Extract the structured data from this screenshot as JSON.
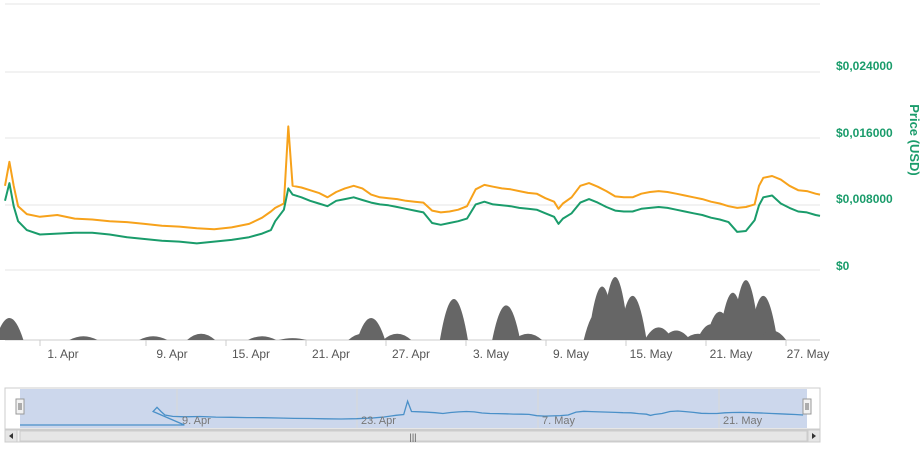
{
  "chart_data": {
    "type": "line",
    "ylabel": "Price (USD)",
    "ylim": [
      0,
      0.03
    ],
    "y_tick_labels": [
      "$0",
      "$0,008000",
      "$0,016000",
      "$0,024000"
    ],
    "y_tick_values": [
      0,
      0.008,
      0.016,
      0.024
    ],
    "x_tick_labels": [
      "1. Apr",
      "9. Apr",
      "15. Apr",
      "21. Apr",
      "27. Apr",
      "3. May",
      "9. May",
      "15. May",
      "21. May",
      "27. May"
    ],
    "x_range_days": [
      0,
      93.5
    ],
    "x_tick_days": [
      6,
      14,
      20,
      26,
      32,
      38,
      44,
      50,
      56,
      62
    ],
    "grid": true,
    "colors": {
      "series_orange": "#f7a21b",
      "series_green": "#1a9c6b",
      "axis_text": "#1a9c6b",
      "volume": "#666666",
      "navigator_line": "#4a90c8",
      "navigator_fill": "#c6d3ea"
    },
    "series": [
      {
        "color": "#f7a21b",
        "points": [
          [
            0,
            0.0095
          ],
          [
            0.5,
            0.0122
          ],
          [
            1,
            0.0095
          ],
          [
            1.5,
            0.0072
          ],
          [
            2.5,
            0.0063
          ],
          [
            4,
            0.006
          ],
          [
            6,
            0.0062
          ],
          [
            8,
            0.0058
          ],
          [
            10,
            0.0057
          ],
          [
            12,
            0.0055
          ],
          [
            14,
            0.0054
          ],
          [
            16,
            0.0052
          ],
          [
            18,
            0.005
          ],
          [
            20,
            0.0049
          ],
          [
            22,
            0.0047
          ],
          [
            24,
            0.0046
          ],
          [
            26,
            0.0048
          ],
          [
            28,
            0.0052
          ],
          [
            29.5,
            0.0059
          ],
          [
            30.5,
            0.0066
          ],
          [
            31,
            0.007
          ],
          [
            32,
            0.0075
          ],
          [
            32.5,
            0.0162
          ],
          [
            33,
            0.0095
          ],
          [
            34,
            0.0093
          ],
          [
            35,
            0.009
          ],
          [
            36,
            0.0087
          ],
          [
            37,
            0.0082
          ],
          [
            38,
            0.0088
          ],
          [
            39,
            0.0092
          ],
          [
            40,
            0.0095
          ],
          [
            41,
            0.0092
          ],
          [
            42,
            0.0085
          ],
          [
            43,
            0.0082
          ],
          [
            44,
            0.0081
          ],
          [
            45,
            0.008
          ],
          [
            46,
            0.0078
          ],
          [
            47,
            0.0077
          ],
          [
            48,
            0.0076
          ],
          [
            49,
            0.0067
          ],
          [
            50,
            0.0065
          ],
          [
            51,
            0.0066
          ],
          [
            52,
            0.0068
          ],
          [
            53,
            0.0072
          ],
          [
            54,
            0.0091
          ],
          [
            55,
            0.0096
          ],
          [
            56,
            0.0094
          ],
          [
            57,
            0.0092
          ],
          [
            58,
            0.0091
          ],
          [
            59,
            0.0089
          ],
          [
            60,
            0.0087
          ],
          [
            61,
            0.0086
          ],
          [
            62,
            0.0081
          ],
          [
            63,
            0.0077
          ],
          [
            63.5,
            0.0069
          ],
          [
            64,
            0.0075
          ],
          [
            65,
            0.0082
          ],
          [
            66,
            0.0095
          ],
          [
            67,
            0.0098
          ],
          [
            68,
            0.0094
          ],
          [
            69,
            0.0089
          ],
          [
            70,
            0.0083
          ],
          [
            71,
            0.0082
          ],
          [
            72,
            0.0082
          ],
          [
            73,
            0.0086
          ],
          [
            74,
            0.0088
          ],
          [
            75,
            0.0089
          ],
          [
            76,
            0.0088
          ],
          [
            77,
            0.0086
          ],
          [
            78,
            0.0084
          ],
          [
            79,
            0.0082
          ],
          [
            80,
            0.008
          ],
          [
            81,
            0.0077
          ],
          [
            82,
            0.0075
          ],
          [
            83,
            0.0072
          ],
          [
            84,
            0.007
          ],
          [
            85,
            0.0071
          ],
          [
            86,
            0.0074
          ],
          [
            86.5,
            0.0095
          ],
          [
            87,
            0.0104
          ],
          [
            88,
            0.0106
          ],
          [
            89,
            0.0102
          ],
          [
            90,
            0.0095
          ],
          [
            91,
            0.009
          ],
          [
            92,
            0.0089
          ],
          [
            93,
            0.0086
          ],
          [
            93.5,
            0.0085
          ]
        ]
      },
      {
        "color": "#1a9c6b",
        "points": [
          [
            0,
            0.0078
          ],
          [
            0.5,
            0.0098
          ],
          [
            1,
            0.0072
          ],
          [
            1.5,
            0.0055
          ],
          [
            2.5,
            0.0045
          ],
          [
            4,
            0.004
          ],
          [
            6,
            0.0041
          ],
          [
            8,
            0.0042
          ],
          [
            10,
            0.0042
          ],
          [
            12,
            0.004
          ],
          [
            14,
            0.0037
          ],
          [
            16,
            0.0035
          ],
          [
            18,
            0.0033
          ],
          [
            20,
            0.0032
          ],
          [
            22,
            0.003
          ],
          [
            24,
            0.0032
          ],
          [
            26,
            0.0034
          ],
          [
            28,
            0.0037
          ],
          [
            29.5,
            0.0041
          ],
          [
            30.5,
            0.0045
          ],
          [
            31,
            0.0055
          ],
          [
            32,
            0.0068
          ],
          [
            32.5,
            0.0092
          ],
          [
            33,
            0.0085
          ],
          [
            34,
            0.0082
          ],
          [
            35,
            0.0078
          ],
          [
            36,
            0.0075
          ],
          [
            37,
            0.0072
          ],
          [
            38,
            0.0078
          ],
          [
            39,
            0.008
          ],
          [
            40,
            0.0082
          ],
          [
            41,
            0.0079
          ],
          [
            42,
            0.0076
          ],
          [
            43,
            0.0074
          ],
          [
            44,
            0.0073
          ],
          [
            45,
            0.0071
          ],
          [
            46,
            0.0069
          ],
          [
            47,
            0.0067
          ],
          [
            48,
            0.0065
          ],
          [
            49,
            0.0053
          ],
          [
            50,
            0.0051
          ],
          [
            51,
            0.0053
          ],
          [
            52,
            0.0055
          ],
          [
            53,
            0.0058
          ],
          [
            54,
            0.0074
          ],
          [
            55,
            0.0077
          ],
          [
            56,
            0.0074
          ],
          [
            57,
            0.0073
          ],
          [
            58,
            0.0072
          ],
          [
            59,
            0.007
          ],
          [
            60,
            0.0069
          ],
          [
            61,
            0.0068
          ],
          [
            62,
            0.0064
          ],
          [
            63,
            0.006
          ],
          [
            63.5,
            0.0052
          ],
          [
            64,
            0.0058
          ],
          [
            65,
            0.0064
          ],
          [
            66,
            0.0076
          ],
          [
            67,
            0.008
          ],
          [
            68,
            0.0076
          ],
          [
            69,
            0.0071
          ],
          [
            70,
            0.0067
          ],
          [
            71,
            0.0066
          ],
          [
            72,
            0.0066
          ],
          [
            73,
            0.0069
          ],
          [
            74,
            0.007
          ],
          [
            75,
            0.0071
          ],
          [
            76,
            0.007
          ],
          [
            77,
            0.0068
          ],
          [
            78,
            0.0066
          ],
          [
            79,
            0.0064
          ],
          [
            80,
            0.0062
          ],
          [
            81,
            0.0059
          ],
          [
            82,
            0.0057
          ],
          [
            83,
            0.0054
          ],
          [
            84,
            0.0043
          ],
          [
            85,
            0.0044
          ],
          [
            86,
            0.0056
          ],
          [
            86.5,
            0.0073
          ],
          [
            87,
            0.0082
          ],
          [
            88,
            0.0084
          ],
          [
            89,
            0.0075
          ],
          [
            90,
            0.007
          ],
          [
            91,
            0.0066
          ],
          [
            92,
            0.0065
          ],
          [
            93,
            0.0062
          ],
          [
            93.5,
            0.0061
          ]
        ]
      }
    ],
    "volume": {
      "color": "#666666",
      "peaks": [
        [
          0.5,
          0.35
        ],
        [
          9,
          0.06
        ],
        [
          17,
          0.06
        ],
        [
          22.5,
          0.1
        ],
        [
          29.5,
          0.06
        ],
        [
          33,
          0.03
        ],
        [
          41,
          0.1
        ],
        [
          42,
          0.35
        ],
        [
          45,
          0.1
        ],
        [
          51.5,
          0.65
        ],
        [
          57.5,
          0.55
        ],
        [
          60,
          0.1
        ],
        [
          68,
          0.45
        ],
        [
          68.5,
          0.85
        ],
        [
          70,
          1.0
        ],
        [
          72,
          0.7
        ],
        [
          75,
          0.2
        ],
        [
          77,
          0.15
        ],
        [
          79.5,
          0.1
        ],
        [
          81,
          0.25
        ],
        [
          82,
          0.45
        ],
        [
          83.5,
          0.75
        ],
        [
          85,
          0.95
        ],
        [
          87,
          0.7
        ],
        [
          88,
          0.15
        ]
      ]
    },
    "navigator": {
      "x_tick_labels": [
        "9. Apr",
        "23. Apr",
        "7. May",
        "21. May"
      ],
      "x_tick_days": [
        14,
        28,
        42,
        56
      ],
      "x_range_days": [
        -7,
        93.5
      ],
      "handle_glyph": "|||"
    }
  }
}
